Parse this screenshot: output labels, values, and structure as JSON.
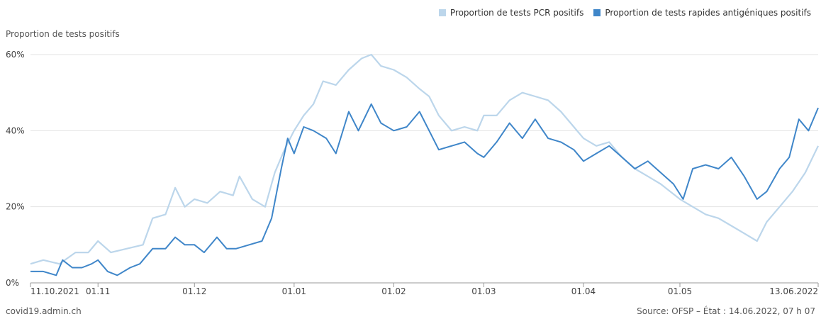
{
  "legend": [
    {
      "label": "Proportion de tests PCR positifs",
      "color": "#bcd6eb"
    },
    {
      "label": "Proportion de tests rapides antigéniques positifs",
      "color": "#3f86c9"
    }
  ],
  "footer": {
    "left": "covid19.admin.ch",
    "right": "Source: OFSP – État : 14.06.2022, 07 h 07"
  },
  "chart_data": {
    "type": "line",
    "ylabel": "Proportion de tests positifs",
    "xlabel": "",
    "x_range": [
      "2021-10-11",
      "2022-06-13"
    ],
    "ylim": [
      0,
      60
    ],
    "y_ticks": [
      0,
      20,
      40,
      60
    ],
    "y_tick_labels": [
      "0%",
      "20%",
      "40%",
      "60%"
    ],
    "x_ticks": [
      {
        "date": "2021-10-11",
        "label": "11.10.2021"
      },
      {
        "date": "2021-11-01",
        "label": "01.11"
      },
      {
        "date": "2021-12-01",
        "label": "01.12"
      },
      {
        "date": "2022-01-01",
        "label": "01.01"
      },
      {
        "date": "2022-02-01",
        "label": "01.02"
      },
      {
        "date": "2022-03-01",
        "label": "01.03"
      },
      {
        "date": "2022-04-01",
        "label": "01.04"
      },
      {
        "date": "2022-05-01",
        "label": "01.05"
      },
      {
        "date": "2022-06-13",
        "label": "13.06.2022"
      }
    ],
    "grid": true,
    "legend_position": "top-right",
    "series": [
      {
        "name": "Proportion de tests PCR positifs",
        "color": "#bcd6eb",
        "points": [
          [
            "2021-10-11",
            5
          ],
          [
            "2021-10-15",
            6
          ],
          [
            "2021-10-20",
            5
          ],
          [
            "2021-10-25",
            8
          ],
          [
            "2021-10-29",
            8
          ],
          [
            "2021-11-01",
            11
          ],
          [
            "2021-11-05",
            8
          ],
          [
            "2021-11-10",
            9
          ],
          [
            "2021-11-15",
            10
          ],
          [
            "2021-11-18",
            17
          ],
          [
            "2021-11-22",
            18
          ],
          [
            "2021-11-25",
            25
          ],
          [
            "2021-11-28",
            20
          ],
          [
            "2021-12-01",
            22
          ],
          [
            "2021-12-05",
            21
          ],
          [
            "2021-12-09",
            24
          ],
          [
            "2021-12-13",
            23
          ],
          [
            "2021-12-15",
            28
          ],
          [
            "2021-12-19",
            22
          ],
          [
            "2021-12-23",
            20
          ],
          [
            "2021-12-26",
            29
          ],
          [
            "2021-12-29",
            35
          ],
          [
            "2022-01-01",
            40
          ],
          [
            "2022-01-04",
            44
          ],
          [
            "2022-01-07",
            47
          ],
          [
            "2022-01-10",
            53
          ],
          [
            "2022-01-14",
            52
          ],
          [
            "2022-01-18",
            56
          ],
          [
            "2022-01-22",
            59
          ],
          [
            "2022-01-25",
            60
          ],
          [
            "2022-01-28",
            57
          ],
          [
            "2022-02-01",
            56
          ],
          [
            "2022-02-05",
            54
          ],
          [
            "2022-02-09",
            51
          ],
          [
            "2022-02-12",
            49
          ],
          [
            "2022-02-15",
            44
          ],
          [
            "2022-02-19",
            40
          ],
          [
            "2022-02-23",
            41
          ],
          [
            "2022-02-27",
            40
          ],
          [
            "2022-03-01",
            44
          ],
          [
            "2022-03-05",
            44
          ],
          [
            "2022-03-09",
            48
          ],
          [
            "2022-03-13",
            50
          ],
          [
            "2022-03-17",
            49
          ],
          [
            "2022-03-21",
            48
          ],
          [
            "2022-03-25",
            45
          ],
          [
            "2022-03-29",
            41
          ],
          [
            "2022-04-01",
            38
          ],
          [
            "2022-04-05",
            36
          ],
          [
            "2022-04-09",
            37
          ],
          [
            "2022-04-13",
            33
          ],
          [
            "2022-04-17",
            30
          ],
          [
            "2022-04-21",
            28
          ],
          [
            "2022-04-25",
            26
          ],
          [
            "2022-05-01",
            22
          ],
          [
            "2022-05-05",
            20
          ],
          [
            "2022-05-09",
            18
          ],
          [
            "2022-05-13",
            17
          ],
          [
            "2022-05-17",
            15
          ],
          [
            "2022-05-21",
            13
          ],
          [
            "2022-05-25",
            11
          ],
          [
            "2022-05-28",
            16
          ],
          [
            "2022-06-01",
            20
          ],
          [
            "2022-06-05",
            24
          ],
          [
            "2022-06-09",
            29
          ],
          [
            "2022-06-13",
            36
          ]
        ]
      },
      {
        "name": "Proportion de tests rapides antigéniques positifs",
        "color": "#3f86c9",
        "points": [
          [
            "2021-10-11",
            3
          ],
          [
            "2021-10-15",
            3
          ],
          [
            "2021-10-19",
            2
          ],
          [
            "2021-10-21",
            6
          ],
          [
            "2021-10-24",
            4
          ],
          [
            "2021-10-27",
            4
          ],
          [
            "2021-10-30",
            5
          ],
          [
            "2021-11-01",
            6
          ],
          [
            "2021-11-04",
            3
          ],
          [
            "2021-11-07",
            2
          ],
          [
            "2021-11-11",
            4
          ],
          [
            "2021-11-14",
            5
          ],
          [
            "2021-11-18",
            9
          ],
          [
            "2021-11-22",
            9
          ],
          [
            "2021-11-25",
            12
          ],
          [
            "2021-11-28",
            10
          ],
          [
            "2021-12-01",
            10
          ],
          [
            "2021-12-04",
            8
          ],
          [
            "2021-12-08",
            12
          ],
          [
            "2021-12-11",
            9
          ],
          [
            "2021-12-14",
            9
          ],
          [
            "2021-12-18",
            10
          ],
          [
            "2021-12-22",
            11
          ],
          [
            "2021-12-25",
            17
          ],
          [
            "2021-12-28",
            30
          ],
          [
            "2021-12-30",
            38
          ],
          [
            "2022-01-01",
            34
          ],
          [
            "2022-01-04",
            41
          ],
          [
            "2022-01-07",
            40
          ],
          [
            "2022-01-11",
            38
          ],
          [
            "2022-01-14",
            34
          ],
          [
            "2022-01-18",
            45
          ],
          [
            "2022-01-21",
            40
          ],
          [
            "2022-01-25",
            47
          ],
          [
            "2022-01-28",
            42
          ],
          [
            "2022-02-01",
            40
          ],
          [
            "2022-02-05",
            41
          ],
          [
            "2022-02-09",
            45
          ],
          [
            "2022-02-12",
            40
          ],
          [
            "2022-02-15",
            35
          ],
          [
            "2022-02-19",
            36
          ],
          [
            "2022-02-23",
            37
          ],
          [
            "2022-02-27",
            34
          ],
          [
            "2022-03-01",
            33
          ],
          [
            "2022-03-05",
            37
          ],
          [
            "2022-03-09",
            42
          ],
          [
            "2022-03-13",
            38
          ],
          [
            "2022-03-17",
            43
          ],
          [
            "2022-03-21",
            38
          ],
          [
            "2022-03-25",
            37
          ],
          [
            "2022-03-29",
            35
          ],
          [
            "2022-04-01",
            32
          ],
          [
            "2022-04-05",
            34
          ],
          [
            "2022-04-09",
            36
          ],
          [
            "2022-04-13",
            33
          ],
          [
            "2022-04-17",
            30
          ],
          [
            "2022-04-21",
            32
          ],
          [
            "2022-04-25",
            29
          ],
          [
            "2022-04-29",
            26
          ],
          [
            "2022-05-02",
            22
          ],
          [
            "2022-05-05",
            30
          ],
          [
            "2022-05-09",
            31
          ],
          [
            "2022-05-13",
            30
          ],
          [
            "2022-05-17",
            33
          ],
          [
            "2022-05-21",
            28
          ],
          [
            "2022-05-25",
            22
          ],
          [
            "2022-05-28",
            24
          ],
          [
            "2022-06-01",
            30
          ],
          [
            "2022-06-04",
            33
          ],
          [
            "2022-06-07",
            43
          ],
          [
            "2022-06-10",
            40
          ],
          [
            "2022-06-13",
            46
          ]
        ]
      }
    ]
  }
}
